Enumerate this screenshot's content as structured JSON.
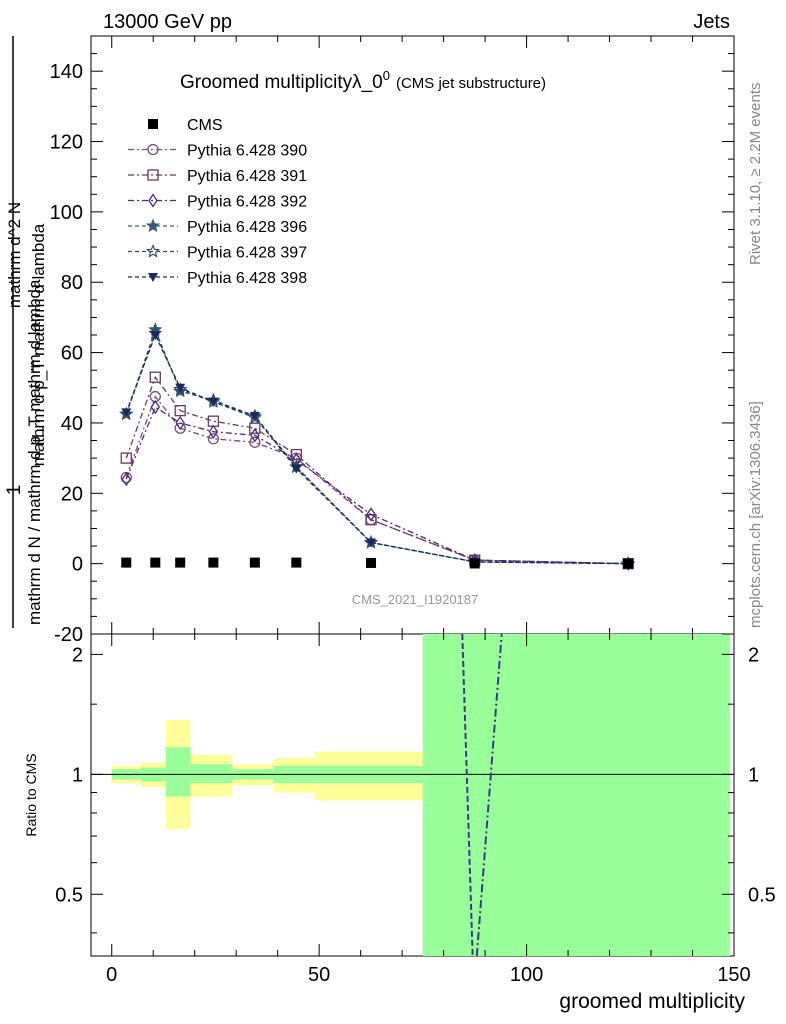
{
  "header": {
    "left": "13000 GeV pp",
    "right": "Jets"
  },
  "side_labels": {
    "rivet": "Rivet 3.1.10, ≥ 2.2M events",
    "mcplots": "mcplots.cern.ch [arXiv:1306.3436]"
  },
  "chart_data": {
    "type": "line",
    "title_main": "Groomed multiplicityλ_0",
    "title_sup": "0",
    "title_sub": "(CMS jet substructure)",
    "watermark": "CMS_2021_I1920187",
    "xlabel": "groomed multiplicity",
    "ylabel_top": "1",
    "ylabel_bottom": "mathrm d N / mathrm d p_T mathrm d lambda",
    "ylabel_upper_num": "mathrm d^2 N",
    "ylabel_upper_den": "mathrm d p_T mathrm d lambda",
    "ratio_ylabel": "Ratio to CMS",
    "xlim": [
      -5,
      150
    ],
    "ylim": [
      -20,
      150
    ],
    "ratio_ylim": [
      0.35,
      2.25
    ],
    "x_ticks": [
      "0",
      "50",
      "100",
      "150"
    ],
    "y_ticks": [
      "-20",
      "0",
      "20",
      "40",
      "60",
      "80",
      "100",
      "120",
      "140"
    ],
    "ratio_ticks": [
      "0.5",
      "1",
      "2"
    ],
    "bins": [
      [
        0,
        7
      ],
      [
        7,
        13
      ],
      [
        13,
        19
      ],
      [
        19,
        29
      ],
      [
        29,
        39
      ],
      [
        39,
        49
      ],
      [
        49,
        75
      ],
      [
        75,
        100
      ],
      [
        100,
        149
      ]
    ],
    "x": [
      3.5,
      10.5,
      16.5,
      24.5,
      34.5,
      44.5,
      62.5,
      87.5,
      124.5
    ],
    "data": {
      "name": "CMS",
      "values": [
        0.3,
        0.3,
        0.3,
        0.3,
        0.3,
        0.3,
        0.2,
        0.05,
        0.0
      ],
      "ratio_band_inner": [
        [
          0.97,
          1.03
        ],
        [
          0.96,
          1.04
        ],
        [
          0.88,
          1.17
        ],
        [
          0.95,
          1.06
        ],
        [
          0.97,
          1.03
        ],
        [
          0.95,
          1.05
        ],
        [
          0.95,
          1.05
        ],
        [
          0.35,
          2.25
        ],
        [
          0.35,
          2.25
        ]
      ],
      "ratio_band_outer": [
        [
          0.95,
          1.05
        ],
        [
          0.93,
          1.07
        ],
        [
          0.73,
          1.37
        ],
        [
          0.88,
          1.12
        ],
        [
          0.94,
          1.06
        ],
        [
          0.9,
          1.1
        ],
        [
          0.86,
          1.14
        ],
        [
          0.35,
          2.25
        ],
        [
          0.35,
          2.25
        ]
      ]
    },
    "series": [
      {
        "name": "Pythia 6.428 390",
        "color": "#7a4a7a",
        "marker": "circle",
        "dash": "6,3,2,3",
        "values": [
          24.5,
          47.5,
          38.5,
          35.5,
          34.5,
          30,
          12.5,
          1,
          0
        ]
      },
      {
        "name": "Pythia 6.428 391",
        "color": "#6a3a5a",
        "marker": "square",
        "dash": "6,3,2,3",
        "values": [
          30,
          53,
          43.5,
          40.5,
          38.5,
          31,
          12.5,
          1,
          0
        ]
      },
      {
        "name": "Pythia 6.428 392",
        "color": "#4a2a7a",
        "marker": "diamond",
        "dash": "6,3,2,3",
        "values": [
          24,
          44.5,
          40,
          37.5,
          36.5,
          29.5,
          14,
          1,
          0
        ]
      },
      {
        "name": "Pythia 6.428 396",
        "color": "#3a5a7a",
        "marker": "star",
        "dash": "4,3",
        "values": [
          42.5,
          66.5,
          49,
          46.5,
          42,
          27.5,
          6,
          0.5,
          0
        ]
      },
      {
        "name": "Pythia 6.428 397",
        "color": "#2a4a6a",
        "marker": "star-open",
        "dash": "4,3",
        "values": [
          42.5,
          65.5,
          49.5,
          46,
          41.5,
          27.5,
          6,
          0.5,
          0
        ]
      },
      {
        "name": "Pythia 6.428 398",
        "color": "#1a2a5a",
        "marker": "tri-down",
        "dash": "4,3",
        "values": [
          43,
          65,
          50,
          46,
          42,
          27,
          6,
          0.5,
          0
        ]
      }
    ],
    "ratio_lines": {
      "comment_free": true,
      "series_a_points": [
        [
          84.5,
          2.25
        ],
        [
          87,
          0.35
        ]
      ],
      "series_b_points": [
        [
          88,
          0.35
        ],
        [
          94,
          2.25
        ]
      ]
    },
    "colors": {
      "band_inner": "#99ff99",
      "band_outer": "#ffff99",
      "data": "#000000"
    },
    "grid": false,
    "legend_position": "top-left"
  }
}
